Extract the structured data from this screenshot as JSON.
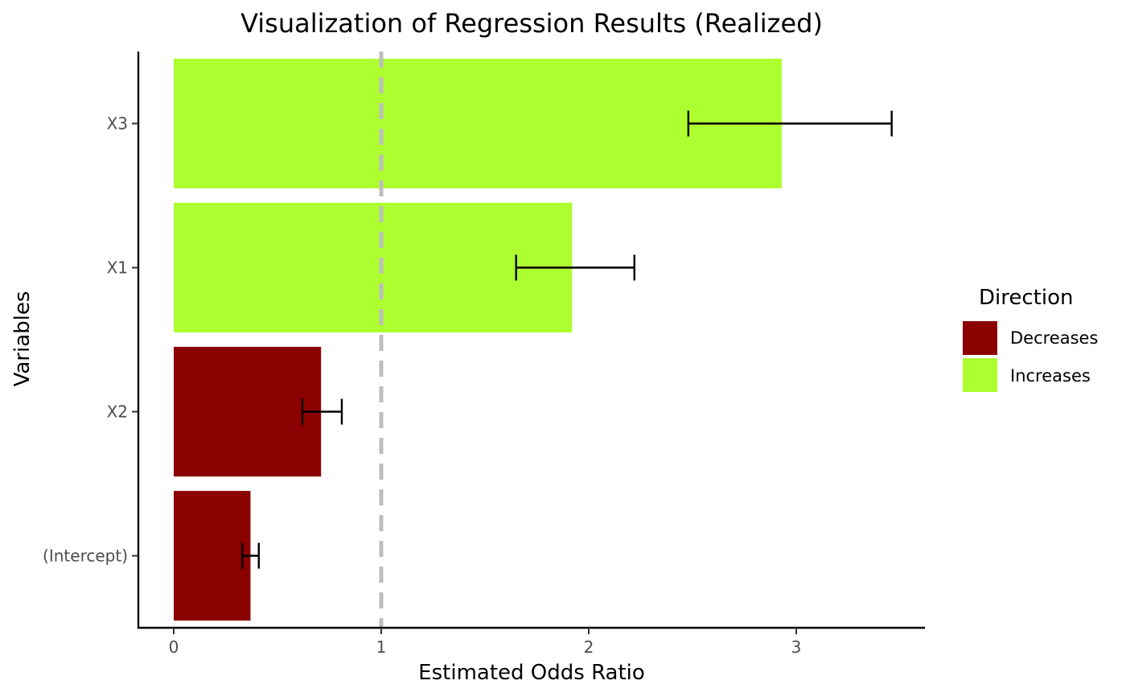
{
  "chart_data": {
    "type": "bar",
    "orientation": "horizontal",
    "title": "Visualization of Regression Results (Realized)",
    "xlabel": "Estimated Odds Ratio",
    "ylabel": "Variables",
    "xlim": [
      -0.17,
      3.6
    ],
    "x_ticks": [
      0,
      1,
      2,
      3
    ],
    "reference_line": 1,
    "categories": [
      "(Intercept)",
      "X2",
      "X1",
      "X3"
    ],
    "values": [
      0.37,
      0.71,
      1.92,
      2.93
    ],
    "ci_low": [
      0.33,
      0.62,
      1.65,
      2.48
    ],
    "ci_high": [
      0.41,
      0.81,
      2.22,
      3.46
    ],
    "direction": [
      "Decreases",
      "Decreases",
      "Increases",
      "Increases"
    ],
    "legend": {
      "title": "Direction",
      "position": "right",
      "entries": [
        {
          "label": "Decreases",
          "color": "#8b0000"
        },
        {
          "label": "Increases",
          "color": "#adff2f"
        }
      ]
    },
    "grid": false
  }
}
